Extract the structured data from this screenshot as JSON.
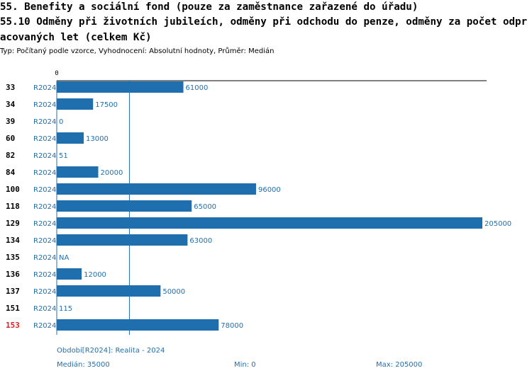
{
  "header": {
    "title": "55. Benefity a sociální fond (pouze za zaměstnance zařazené do úřadu)",
    "subtitle": "55.10 Odměny při životních jubileích, odměny při odchodu do penze, odměny za počet odpracovaných let (celkem Kč)",
    "meta": "Typ: Počítaný podle vzorce, Vyhodnocení: Absolutní hodnoty, Průměr: Medián"
  },
  "chart_data": {
    "type": "bar",
    "orientation": "horizontal",
    "axis_tick_label": "0",
    "xlim": [
      0,
      205000
    ],
    "categories": [
      "33",
      "34",
      "39",
      "60",
      "82",
      "84",
      "100",
      "118",
      "129",
      "134",
      "135",
      "136",
      "137",
      "151",
      "153"
    ],
    "period_label": "R2024",
    "values": [
      61000,
      17500,
      0,
      13000,
      51,
      20000,
      96000,
      65000,
      205000,
      63000,
      null,
      12000,
      50000,
      115,
      78000
    ],
    "value_labels": [
      "61000",
      "17500",
      "0",
      "13000",
      "51",
      "20000",
      "96000",
      "65000",
      "205000",
      "63000",
      "NA",
      "12000",
      "50000",
      "115",
      "78000"
    ],
    "highlight_category": "153",
    "median": 35000,
    "colors": {
      "bar": "#1f6faf",
      "text": "#1f6faf",
      "highlight": "#e02020"
    }
  },
  "footer": {
    "period": "Období[R2024]: Realita - 2024",
    "median": "Medián: 35000",
    "min": "Min: 0",
    "max": "Max: 205000"
  }
}
